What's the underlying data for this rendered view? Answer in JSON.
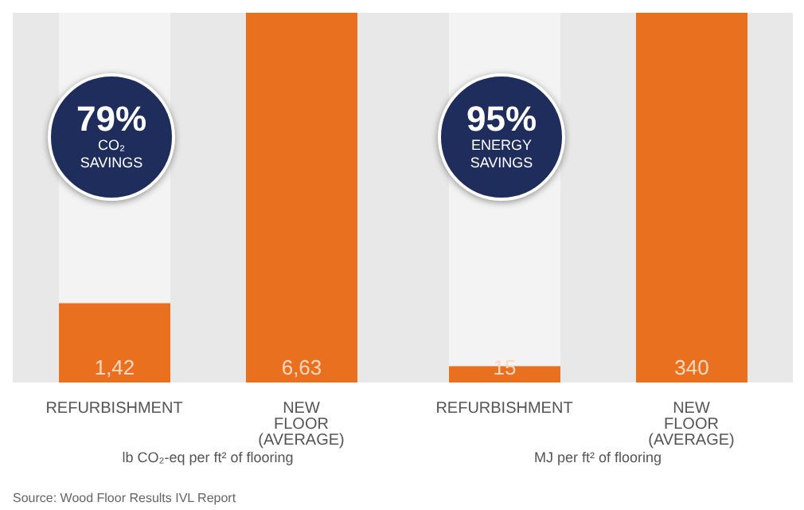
{
  "chart_data": [
    {
      "type": "bar",
      "categories": [
        "REFURBISHMENT",
        "NEW FLOOR (AVERAGE)"
      ],
      "values": [
        1.42,
        6.63
      ],
      "value_labels": [
        "1,42",
        "6,63"
      ],
      "color": "#e8701f",
      "xlabel": "lb CO₂-eq per ft² of flooring",
      "annotations": [
        "79%",
        "CO₂ SAVINGS",
        "Source: Wood Floor Results IVL Report"
      ]
    },
    {
      "type": "bar",
      "categories": [
        "REFURBISHMENT",
        "NEW FLOOR (AVERAGE)"
      ],
      "values": [
        15,
        340
      ],
      "value_labels": [
        "15",
        "340"
      ],
      "color": "#e8701f",
      "xlabel": "MJ per ft² of flooring",
      "annotations": [
        "95%",
        "ENERGY SAVINGS"
      ]
    }
  ]
}
